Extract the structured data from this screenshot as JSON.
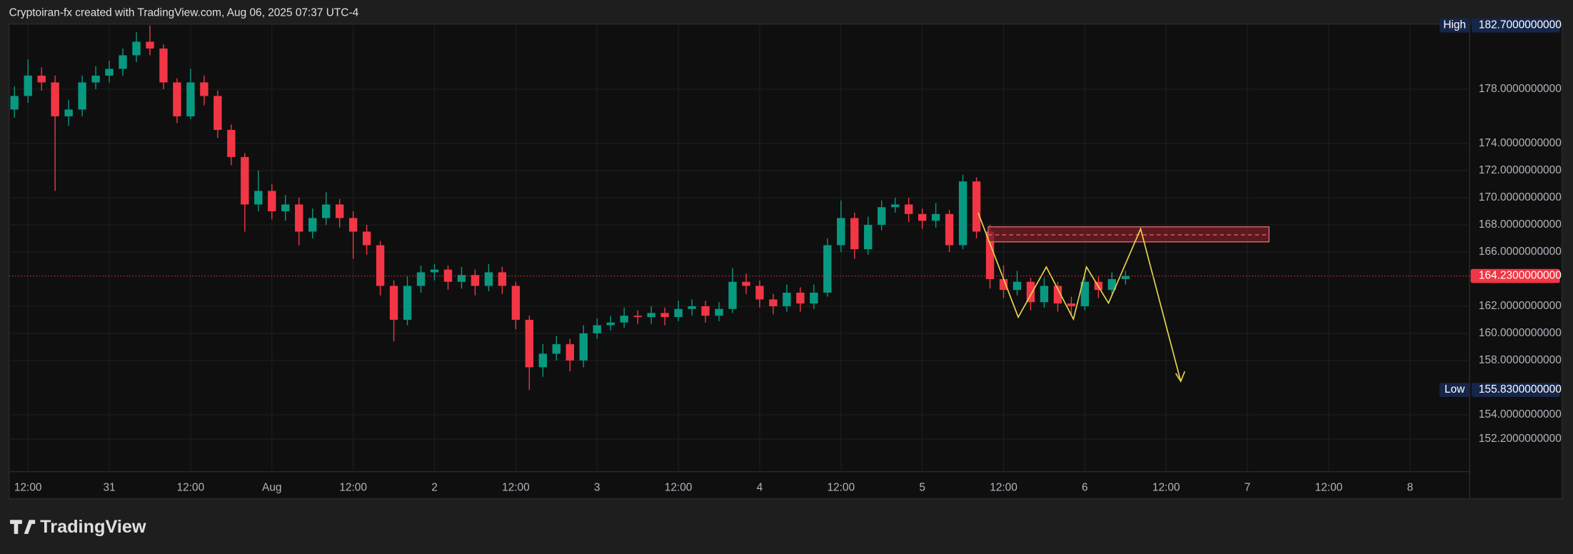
{
  "header": "Cryptoiran-fx created with TradingView.com, Aug 06, 2025 07:37 UTC-4",
  "footer_logo": "TradingView",
  "chart_data": {
    "type": "candlestick",
    "up_color": "#089981",
    "down_color": "#f23645",
    "grid": true,
    "open": [
      176.5,
      177.5,
      179,
      178.5,
      176,
      176.5,
      178.5,
      179,
      179.5,
      180.5,
      181.5,
      181,
      178.5,
      176,
      178.5,
      177.5,
      175,
      173,
      169.5,
      170.5,
      169,
      169.5,
      167.5,
      168.5,
      169.5,
      168.5,
      167.5,
      166.5,
      163.5,
      161,
      163.5,
      164.5,
      164.7,
      163.8,
      164.3,
      163.5,
      164.5,
      163.5,
      161,
      157.5,
      158.5,
      159.2,
      158,
      160,
      160.6,
      160.8,
      161.3,
      161.2,
      161.5,
      161.2,
      161.8,
      162,
      161.3,
      161.8,
      163.8,
      163.5,
      162.5,
      162,
      163,
      162.2,
      163,
      166.5,
      168.5,
      166.2,
      168,
      169.3,
      169.5,
      168.8,
      168.3,
      168.8,
      166.5,
      171.2,
      167.5,
      164,
      163.2,
      163.8,
      162.3,
      163.5,
      162.2,
      162,
      163.8,
      163.2,
      164
    ],
    "high": [
      178.2,
      180.2,
      179.6,
      179,
      177.2,
      179,
      179.7,
      180.1,
      181,
      182.2,
      182.7,
      181.3,
      178.8,
      179.5,
      179,
      177.9,
      175.4,
      173.3,
      172,
      171,
      170.2,
      170,
      169.2,
      170.4,
      169.9,
      169,
      168,
      166.8,
      163.9,
      164.2,
      165,
      165.1,
      165,
      164.9,
      164.7,
      165.1,
      164.9,
      163.8,
      161.3,
      159.2,
      159.8,
      159.6,
      160.6,
      161.1,
      161.3,
      161.9,
      161.7,
      162,
      161.9,
      162.4,
      162.5,
      162.4,
      162.3,
      164.8,
      164.4,
      163.9,
      162.9,
      163.6,
      163.4,
      163.6,
      167,
      169.8,
      168.9,
      168.6,
      169.8,
      170,
      170,
      169.2,
      169.6,
      169.1,
      171.7,
      171.5,
      168,
      165,
      164.6,
      164.1,
      164.1,
      163.8,
      162.7,
      164.3,
      164.2,
      164.5,
      164.6
    ],
    "low": [
      175.9,
      177,
      177.9,
      170.5,
      175.3,
      176,
      178,
      178.5,
      179,
      180,
      180.5,
      178,
      175.5,
      175.8,
      176.8,
      174.4,
      172.4,
      167.5,
      169,
      168.4,
      168.3,
      166.5,
      167,
      168,
      167.8,
      165.5,
      165.8,
      162.8,
      159.4,
      160.6,
      163,
      163.9,
      163.2,
      163.3,
      162.8,
      163.1,
      162.9,
      160.3,
      155.83,
      156.8,
      158,
      157.2,
      157.5,
      159.6,
      160.2,
      160.4,
      160.7,
      160.7,
      160.6,
      160.9,
      161.3,
      160.8,
      160.9,
      161.5,
      162.9,
      161.9,
      161.4,
      161.6,
      161.6,
      161.8,
      162.7,
      166,
      165.5,
      165.8,
      167.6,
      168.9,
      168.2,
      167.7,
      167.8,
      166,
      166.2,
      167,
      163.3,
      162.6,
      162.8,
      161.7,
      161.9,
      161.6,
      161.4,
      161.7,
      162.6,
      162.8,
      163.6
    ],
    "close": [
      177.5,
      179,
      178.5,
      176,
      176.5,
      178.5,
      179,
      179.5,
      180.5,
      181.5,
      181,
      178.5,
      176,
      178.5,
      177.5,
      175,
      173,
      169.5,
      170.5,
      169,
      169.5,
      167.5,
      168.5,
      169.5,
      168.5,
      167.5,
      166.5,
      163.5,
      161,
      163.5,
      164.5,
      164.7,
      163.8,
      164.3,
      163.5,
      164.5,
      163.5,
      161,
      157.5,
      158.5,
      159.2,
      158,
      160,
      160.6,
      160.8,
      161.3,
      161.2,
      161.5,
      161.2,
      161.8,
      162,
      161.3,
      161.8,
      163.8,
      163.5,
      162.5,
      162,
      163,
      162.2,
      163,
      166.5,
      168.5,
      166.2,
      168,
      169.3,
      169.5,
      168.8,
      168.3,
      168.8,
      166.5,
      171.2,
      167.5,
      164,
      163.2,
      163.8,
      162.3,
      163.5,
      162.2,
      162,
      163.8,
      163.2,
      164,
      164.23
    ],
    "xlim": [
      -0.4,
      107.4
    ],
    "xticks": [
      {
        "value": 1,
        "label": "12:00"
      },
      {
        "value": 7,
        "label": "31"
      },
      {
        "value": 13,
        "label": "12:00"
      },
      {
        "value": 19,
        "label": "Aug"
      },
      {
        "value": 25,
        "label": "12:00"
      },
      {
        "value": 31,
        "label": "2"
      },
      {
        "value": 37,
        "label": "12:00"
      },
      {
        "value": 43,
        "label": "3"
      },
      {
        "value": 49,
        "label": "12:00"
      },
      {
        "value": 55,
        "label": "4"
      },
      {
        "value": 61,
        "label": "12:00"
      },
      {
        "value": 67,
        "label": "5"
      },
      {
        "value": 73,
        "label": "12:00"
      },
      {
        "value": 79,
        "label": "6"
      },
      {
        "value": 85,
        "label": "12:00"
      },
      {
        "value": 91,
        "label": "7"
      },
      {
        "value": 97,
        "label": "12:00"
      },
      {
        "value": 103,
        "label": "8"
      }
    ],
    "ylim": [
      149.8,
      182.8
    ],
    "yticks": [
      {
        "value": 178,
        "label": "178.0000000000"
      },
      {
        "value": 174,
        "label": "174.0000000000"
      },
      {
        "value": 172,
        "label": "172.0000000000"
      },
      {
        "value": 170,
        "label": "170.0000000000"
      },
      {
        "value": 168,
        "label": "168.0000000000"
      },
      {
        "value": 166,
        "label": "166.0000000000"
      },
      {
        "value": 162,
        "label": "162.0000000000"
      },
      {
        "value": 160,
        "label": "160.0000000000"
      },
      {
        "value": 158,
        "label": "158.0000000000"
      },
      {
        "value": 154,
        "label": "154.0000000000"
      },
      {
        "value": 152.2,
        "label": "152.2000000000"
      }
    ],
    "high_marker": {
      "text": "High",
      "value": 182.7,
      "label": "182.7000000000"
    },
    "low_marker": {
      "text": "Low",
      "value": 155.83,
      "label": "155.8300000000"
    },
    "last_price": {
      "value": 164.23,
      "label": "164.2300000000"
    }
  }
}
